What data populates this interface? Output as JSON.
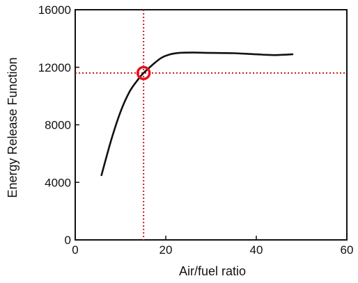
{
  "chart_data": {
    "type": "line",
    "xlabel": "Air/fuel ratio",
    "ylabel": "Energy Release Function",
    "xlim": [
      0,
      60
    ],
    "ylim": [
      0,
      16000
    ],
    "x_ticks": [
      0,
      20,
      40,
      60
    ],
    "y_ticks": [
      0,
      4000,
      8000,
      12000,
      16000
    ],
    "x_tick_labels": [
      "0",
      "20",
      "40",
      "60"
    ],
    "y_tick_labels": [
      "0",
      "4000",
      "8000",
      "12000",
      "16000"
    ],
    "grid": false,
    "series": [
      {
        "x": [
          5.8,
          8,
          10,
          12,
          14,
          15.1,
          17,
          19,
          21,
          23,
          26,
          30,
          35,
          40,
          44,
          48
        ],
        "y": [
          4500,
          7000,
          8900,
          10300,
          11200,
          11600,
          12150,
          12650,
          12900,
          13000,
          13020,
          13000,
          12980,
          12900,
          12850,
          12900
        ],
        "color": "#111111"
      }
    ],
    "annotations": {
      "marker": {
        "x": 15.1,
        "y": 11600,
        "shape": "circle",
        "color": "#e5121c"
      },
      "reference_lines": {
        "vertical_x": 15.1,
        "horizontal_y": 11600,
        "style": "dotted",
        "color": "#c81e1e"
      }
    }
  }
}
